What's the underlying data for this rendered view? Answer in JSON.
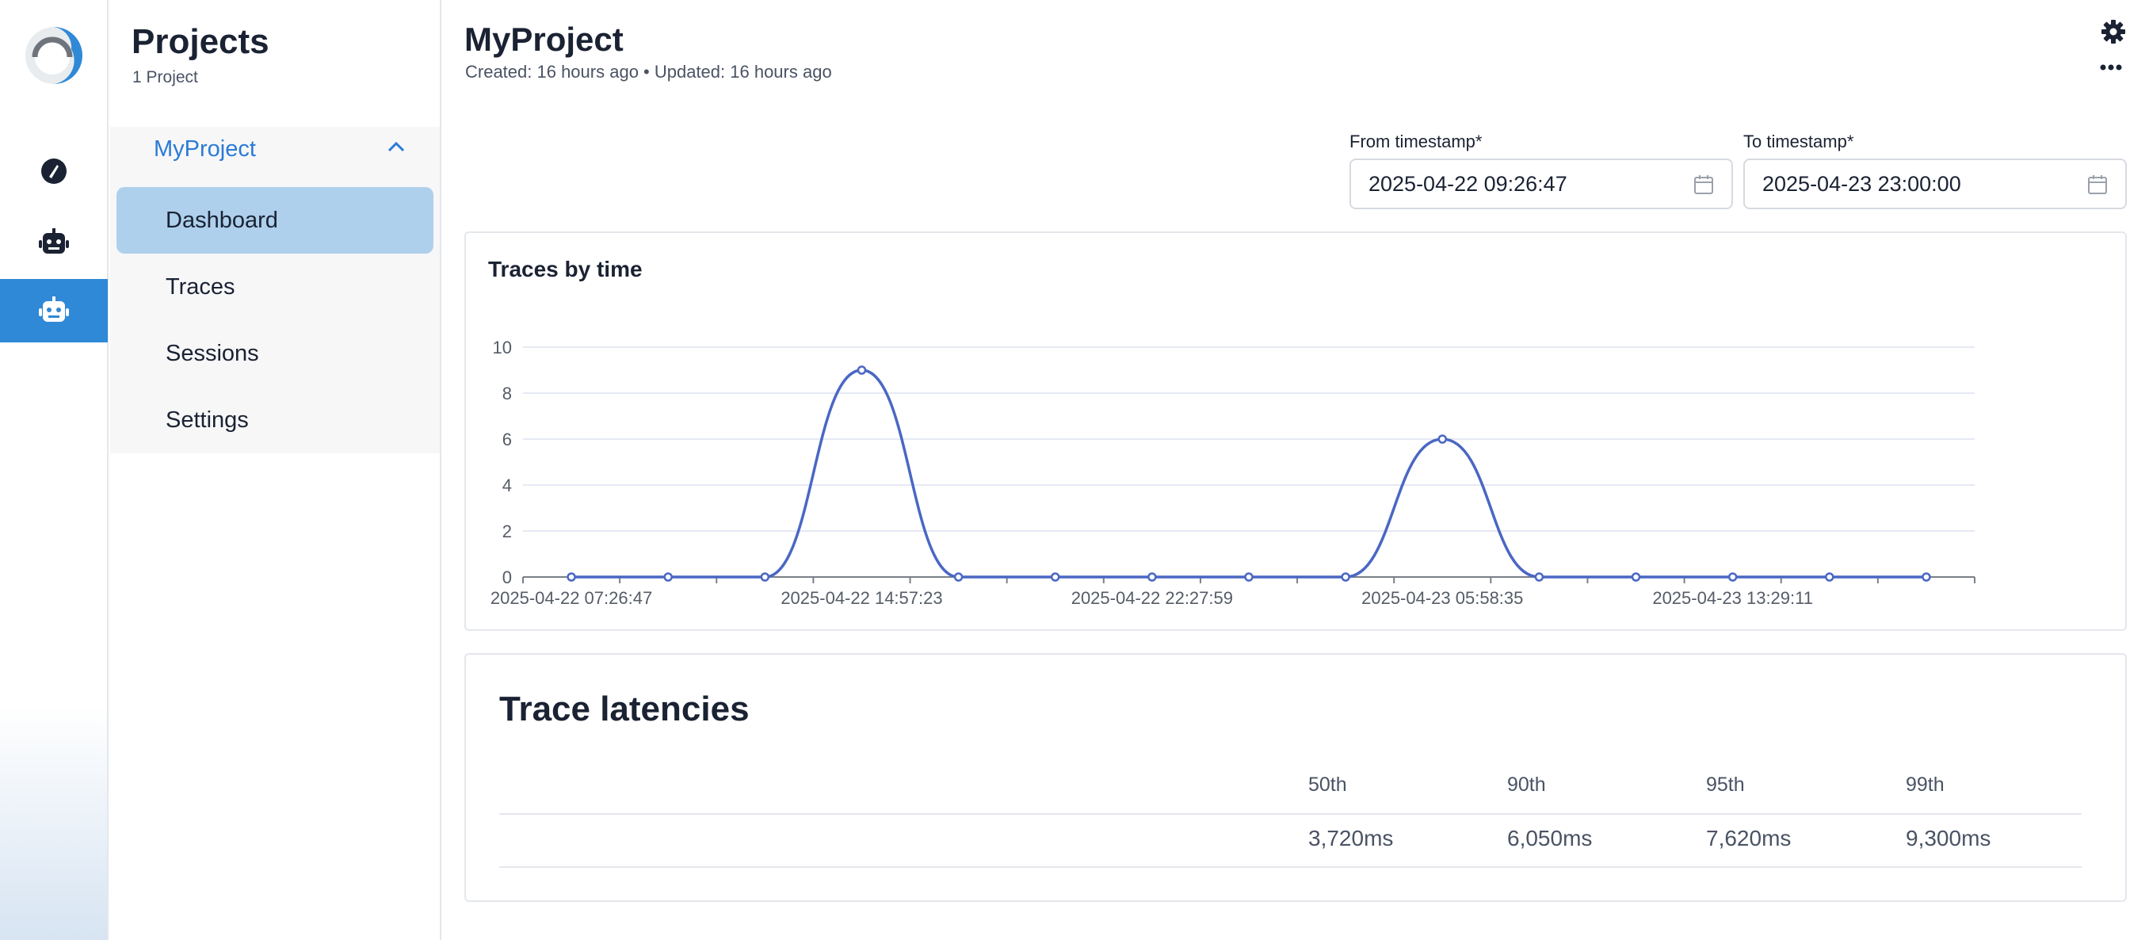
{
  "rail": {
    "items": [
      {
        "icon": "gauge-icon"
      },
      {
        "icon": "robot-icon"
      },
      {
        "icon": "robot-icon",
        "active": true
      }
    ]
  },
  "sidebar": {
    "title": "Projects",
    "subtitle": "1 Project",
    "project": "MyProject",
    "items": [
      {
        "label": "Dashboard",
        "active": true
      },
      {
        "label": "Traces"
      },
      {
        "label": "Sessions"
      },
      {
        "label": "Settings"
      }
    ]
  },
  "header": {
    "title": "MyProject",
    "meta": "Created: 16 hours ago • Updated: 16 hours ago"
  },
  "filters": {
    "from_label": "From timestamp*",
    "from_value": "2025-04-22 09:26:47",
    "to_label": "To timestamp*",
    "to_value": "2025-04-23 23:00:00"
  },
  "chart_data": {
    "type": "line",
    "title": "Traces by time",
    "xlabel": "",
    "ylabel": "",
    "ylim": [
      0,
      10
    ],
    "yticks": [
      "0",
      "2",
      "4",
      "6",
      "8",
      "10"
    ],
    "xticks": [
      "2025-04-22 07:26:47",
      "2025-04-22 14:57:23",
      "2025-04-22 22:27:59",
      "2025-04-23 05:58:35",
      "2025-04-23 13:29:11"
    ],
    "series": [
      {
        "name": "Traces",
        "color": "#4a67c4",
        "values": [
          0,
          0,
          0,
          9,
          0,
          0,
          0,
          0,
          0,
          6,
          0,
          0,
          0,
          0,
          0
        ]
      }
    ]
  },
  "latencies": {
    "title": "Trace latencies",
    "columns": [
      "50th",
      "90th",
      "95th",
      "99th"
    ],
    "values": [
      "3,720ms",
      "6,050ms",
      "7,620ms",
      "9,300ms"
    ]
  },
  "colors": {
    "accent": "#2a7bd6",
    "active_rail": "#2f89d6",
    "active_nav": "#aed0ec",
    "line": "#4a67c4"
  }
}
